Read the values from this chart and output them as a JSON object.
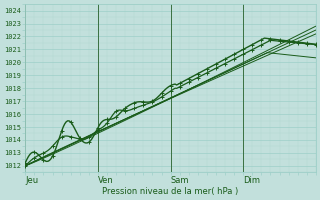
{
  "title": "Pression niveau de la mer( hPa )",
  "ylabel_values": [
    1012,
    1013,
    1014,
    1015,
    1016,
    1017,
    1018,
    1019,
    1020,
    1021,
    1022,
    1023,
    1024
  ],
  "ylim": [
    1011.5,
    1024.5
  ],
  "xlim": [
    0,
    96
  ],
  "day_labels": [
    "Jeu",
    "Ven",
    "Sam",
    "Dim"
  ],
  "day_positions": [
    0,
    24,
    48,
    72
  ],
  "background_color": "#c2e0dc",
  "grid_color_major": "#9ecfc8",
  "grid_color_minor": "#b0d8d2",
  "line_color": "#1a5c1a",
  "tick_label_color": "#1a5c1a",
  "xlabel_color": "#1a5c1a",
  "vline_color": "#3a7040"
}
